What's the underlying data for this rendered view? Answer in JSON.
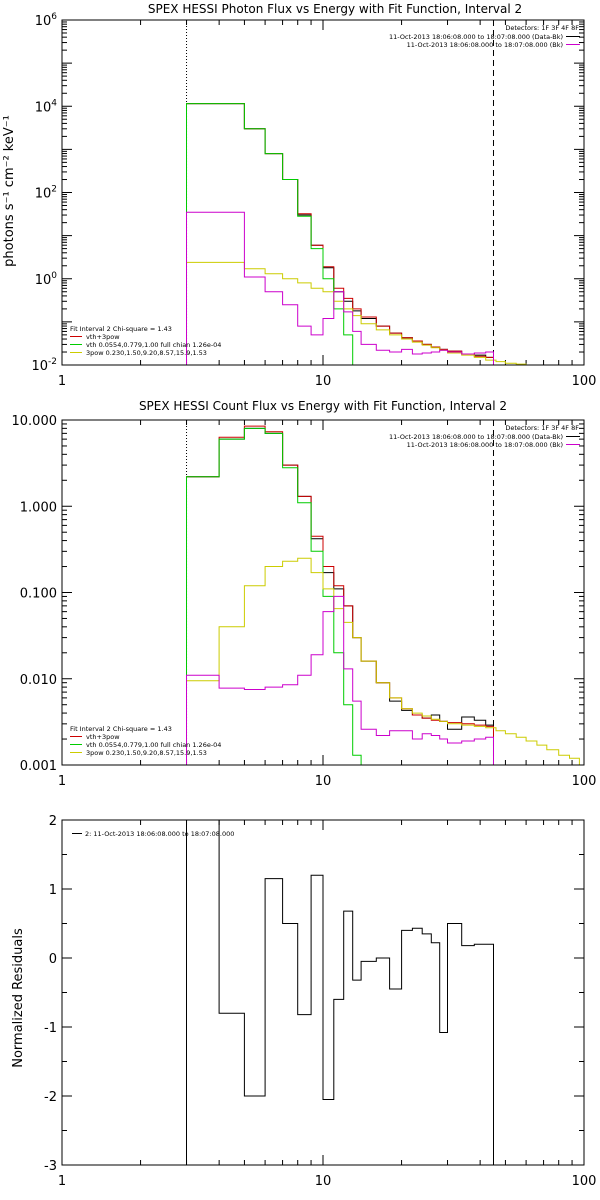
{
  "chart_data": [
    {
      "type": "line",
      "title": "SPEX HESSI Photon Flux vs Energy with Fit Function, Interval 2",
      "ylabel": "photons s⁻¹ cm⁻² keV⁻¹",
      "xlabel": "",
      "xscale": "log",
      "yscale": "log",
      "xlim": [
        1,
        100
      ],
      "ylim": [
        0.01,
        1000000
      ],
      "x_ticks": [
        "1",
        "10",
        "100"
      ],
      "y_ticks": [
        {
          "value": 0.01,
          "base": "10",
          "exp": "-2"
        },
        {
          "value": 1,
          "base": "10",
          "exp": "0"
        },
        {
          "value": 100,
          "base": "10",
          "exp": "2"
        },
        {
          "value": 10000,
          "base": "10",
          "exp": "4"
        },
        {
          "value": 1000000,
          "base": "10",
          "exp": "6"
        }
      ],
      "vlines": [
        {
          "x": 3.0,
          "style": "dotted"
        },
        {
          "x": 45,
          "style": "dashed"
        }
      ],
      "legend_top": {
        "header": "Detectors: 1F 3F 4F 8F",
        "entries": [
          {
            "text": "11-Oct-2013 18:06:08.000 to 18:07:08.000 (Data-Bk)",
            "color": "#000000"
          },
          {
            "text": "11-Oct-2013 18:06:08.000 to 18:07:08.000 (Bk)",
            "color": "#cc00cc"
          }
        ]
      },
      "legend_bottom": {
        "header": "Fit Interval  2    Chi-square = 1.43",
        "entries": [
          {
            "text": "vth+3pow",
            "color": "#cc0000"
          },
          {
            "text": "vth 0.0554,0.779,1.00  full chian 1.26e-04",
            "color": "#00cc00"
          },
          {
            "text": "3pow 0.230,1.50,9.20,8.57,15.9,1.53",
            "color": "#cccc00"
          }
        ]
      },
      "series": [
        {
          "name": "Data-Bk",
          "color": "#000000",
          "edges": [
            3,
            4,
            5,
            6,
            7,
            8,
            9,
            10,
            11,
            12,
            13,
            14,
            16,
            18,
            20,
            22,
            24,
            26,
            28,
            30,
            34,
            38,
            42,
            45
          ],
          "values": [
            11500,
            11500,
            3000,
            800,
            200,
            30,
            6,
            1.8,
            0.5,
            0.3,
            0.18,
            0.12,
            0.08,
            0.055,
            0.043,
            0.036,
            0.03,
            0.026,
            0.023,
            0.021,
            0.018,
            0.017,
            0.015
          ]
        },
        {
          "name": "vth+3pow",
          "color": "#cc0000",
          "edges": [
            3,
            4,
            5,
            6,
            7,
            8,
            9,
            10,
            11,
            12,
            13,
            14,
            16,
            18,
            20,
            22,
            24,
            26,
            28,
            30,
            34,
            38,
            42,
            45
          ],
          "values": [
            11500,
            11500,
            3000,
            800,
            200,
            32,
            6,
            1.9,
            0.6,
            0.35,
            0.2,
            0.13,
            0.08,
            0.055,
            0.043,
            0.036,
            0.03,
            0.026,
            0.023,
            0.021,
            0.018,
            0.016,
            0.015
          ]
        },
        {
          "name": "vth",
          "color": "#00cc00",
          "edges": [
            3,
            4,
            5,
            6,
            7,
            8,
            9,
            10,
            11,
            12,
            13,
            14
          ],
          "values": [
            11500,
            11500,
            3000,
            800,
            200,
            28,
            5,
            1,
            0.2,
            0.05,
            0.01
          ]
        },
        {
          "name": "3pow",
          "color": "#cccc00",
          "edges": [
            3,
            4,
            5,
            6,
            7,
            8,
            9,
            10,
            11,
            12,
            13,
            14,
            16,
            18,
            20,
            22,
            24,
            26,
            28,
            30,
            34,
            38,
            42,
            46,
            50,
            55,
            60,
            66
          ],
          "values": [
            2.4,
            2.4,
            1.7,
            1.3,
            1.0,
            0.8,
            0.6,
            0.5,
            0.3,
            0.2,
            0.14,
            0.09,
            0.065,
            0.05,
            0.04,
            0.034,
            0.029,
            0.025,
            0.022,
            0.019,
            0.017,
            0.015,
            0.013,
            0.012,
            0.011,
            0.0105,
            0.01
          ]
        },
        {
          "name": "Bk",
          "color": "#cc00cc",
          "edges": [
            3,
            4,
            5,
            6,
            7,
            8,
            9,
            10,
            11,
            12,
            13,
            14,
            16,
            18,
            20,
            22,
            24,
            26,
            28,
            30,
            34,
            38,
            42,
            45
          ],
          "values": [
            35,
            35,
            1.1,
            0.5,
            0.25,
            0.08,
            0.05,
            0.12,
            0.5,
            0.17,
            0.06,
            0.03,
            0.022,
            0.02,
            0.023,
            0.018,
            0.019,
            0.02,
            0.022,
            0.02,
            0.018,
            0.019,
            0.02
          ]
        }
      ]
    },
    {
      "type": "line",
      "title": "SPEX HESSI Count Flux vs Energy with Fit Function, Interval 2",
      "xlabel": "",
      "ylabel": "",
      "xscale": "log",
      "yscale": "log",
      "xlim": [
        1,
        100
      ],
      "ylim": [
        0.001,
        10
      ],
      "x_ticks": [
        "1",
        "10",
        "100"
      ],
      "y_ticks": [
        {
          "value": 0.001,
          "label": "0.001"
        },
        {
          "value": 0.01,
          "label": "0.010"
        },
        {
          "value": 0.1,
          "label": "0.100"
        },
        {
          "value": 1,
          "label": "1.000"
        },
        {
          "value": 10,
          "label": "10.000"
        }
      ],
      "vlines": [
        {
          "x": 3.0,
          "style": "dotted"
        },
        {
          "x": 45,
          "style": "dashed"
        }
      ],
      "legend_top": {
        "header": "Detectors: 1F 3F 4F 8F",
        "entries": [
          {
            "text": "11-Oct-2013 18:06:08.000 to 18:07:08.000 (Data-Bk)",
            "color": "#000000"
          },
          {
            "text": "11-Oct-2013 18:06:08.000 to 18:07:08.000 (Bk)",
            "color": "#cc00cc"
          }
        ]
      },
      "legend_bottom": {
        "header": "Fit Interval  2    Chi-square = 1.43",
        "entries": [
          {
            "text": "vth+3pow",
            "color": "#cc0000"
          },
          {
            "text": "vth 0.0554,0.779,1.00  full chian 1.26e-04",
            "color": "#00cc00"
          },
          {
            "text": "3pow 0.230,1.50,9.20,8.57,15.9,1.53",
            "color": "#cccc00"
          }
        ]
      },
      "series": [
        {
          "name": "Data-Bk",
          "color": "#000000",
          "edges": [
            3,
            4,
            5,
            6,
            7,
            8,
            9,
            10,
            11,
            12,
            13,
            14,
            16,
            18,
            20,
            22,
            24,
            26,
            28,
            30,
            34,
            38,
            42,
            45
          ],
          "values": [
            2.2,
            6,
            8,
            7,
            3,
            1.3,
            0.42,
            0.17,
            0.11,
            0.07,
            0.03,
            0.016,
            0.009,
            0.0055,
            0.0043,
            0.0038,
            0.0035,
            0.0038,
            0.0032,
            0.0026,
            0.0036,
            0.0033,
            0.0029
          ]
        },
        {
          "name": "vth+3pow",
          "color": "#cc0000",
          "edges": [
            3,
            4,
            5,
            6,
            7,
            8,
            9,
            10,
            11,
            12,
            13,
            14,
            16,
            18,
            20,
            22,
            24,
            26,
            28,
            30,
            34,
            38,
            42,
            45
          ],
          "values": [
            2.2,
            6.3,
            8.5,
            7.3,
            3,
            1.3,
            0.45,
            0.2,
            0.12,
            0.07,
            0.03,
            0.016,
            0.009,
            0.006,
            0.0045,
            0.0038,
            0.0035,
            0.0033,
            0.0032,
            0.0031,
            0.003,
            0.0029,
            0.0028
          ]
        },
        {
          "name": "vth",
          "color": "#00cc00",
          "edges": [
            3,
            4,
            5,
            6,
            7,
            8,
            9,
            10,
            11,
            12,
            13,
            14
          ],
          "values": [
            2.2,
            6,
            8,
            7,
            2.8,
            1.1,
            0.3,
            0.09,
            0.02,
            0.005,
            0.0013
          ]
        },
        {
          "name": "3pow",
          "color": "#cccc00",
          "edges": [
            3,
            4,
            5,
            6,
            7,
            8,
            9,
            10,
            11,
            12,
            13,
            14,
            16,
            18,
            20,
            22,
            24,
            26,
            28,
            30,
            34,
            38,
            42,
            46,
            50,
            55,
            60,
            66,
            72,
            80,
            88,
            96
          ],
          "values": [
            0.0095,
            0.04,
            0.12,
            0.2,
            0.23,
            0.25,
            0.17,
            0.11,
            0.065,
            0.045,
            0.03,
            0.016,
            0.009,
            0.006,
            0.0045,
            0.004,
            0.0037,
            0.0034,
            0.0032,
            0.003,
            0.0029,
            0.0028,
            0.0027,
            0.0025,
            0.0023,
            0.0021,
            0.0019,
            0.0017,
            0.0015,
            0.0013,
            0.0012
          ]
        },
        {
          "name": "Bk",
          "color": "#cc00cc",
          "edges": [
            3,
            4,
            5,
            6,
            7,
            8,
            9,
            10,
            11,
            12,
            13,
            14,
            16,
            18,
            20,
            22,
            24,
            26,
            28,
            30,
            34,
            38,
            42,
            45
          ],
          "values": [
            0.011,
            0.0078,
            0.0075,
            0.008,
            0.0085,
            0.011,
            0.019,
            0.06,
            0.09,
            0.013,
            0.0055,
            0.0026,
            0.0022,
            0.0025,
            0.0025,
            0.002,
            0.0023,
            0.0022,
            0.002,
            0.0018,
            0.0019,
            0.002,
            0.0021
          ]
        }
      ]
    },
    {
      "type": "line",
      "title": "",
      "xlabel": "",
      "ylabel": "Normalized Residuals",
      "xscale": "log",
      "yscale": "linear",
      "xlim": [
        1,
        100
      ],
      "ylim": [
        -3,
        2
      ],
      "x_ticks": [
        "1",
        "10",
        "100"
      ],
      "y_ticks": [
        {
          "value": -3,
          "label": "-3"
        },
        {
          "value": -2,
          "label": "-2"
        },
        {
          "value": -1,
          "label": "-1"
        },
        {
          "value": 0,
          "label": "0"
        },
        {
          "value": 1,
          "label": "1"
        },
        {
          "value": 2,
          "label": "2"
        }
      ],
      "legend_top": {
        "entries": [
          {
            "text": "2: 11-Oct-2013 18:06:08.000 to 18:07:08.000",
            "color": "#000000"
          }
        ]
      },
      "series": [
        {
          "name": "Residuals",
          "color": "#000000",
          "edges": [
            3,
            4,
            5,
            6,
            7,
            8,
            9,
            10,
            11,
            12,
            13,
            14,
            16,
            18,
            20,
            22,
            24,
            26,
            28,
            30,
            34,
            38,
            42,
            45
          ],
          "values": [
            2.0,
            -0.8,
            -2.0,
            1.15,
            0.5,
            -0.82,
            1.2,
            -2.05,
            -0.6,
            0.68,
            -0.32,
            -0.05,
            0.0,
            -0.45,
            0.4,
            0.43,
            0.35,
            0.22,
            -1.08,
            0.5,
            0.18,
            0.2,
            0.2
          ]
        }
      ]
    }
  ]
}
